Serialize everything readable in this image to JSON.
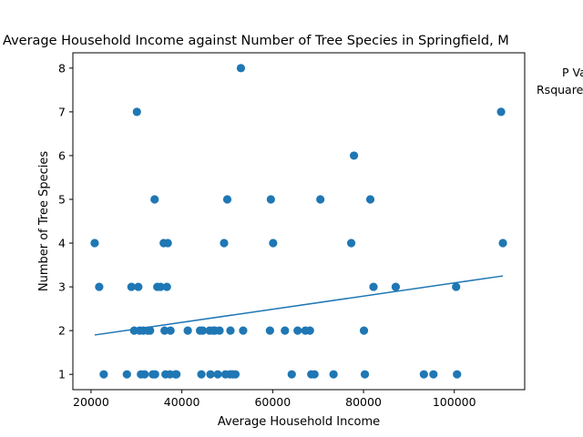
{
  "chart_data": {
    "type": "scatter",
    "title": "Average Household Income against Number of Tree Species in Springfield, M",
    "xlabel": "Average Household Income",
    "ylabel": "Number of Tree Species",
    "xlim": [
      16000,
      115500
    ],
    "ylim": [
      0.65,
      8.35
    ],
    "xticks": [
      20000,
      40000,
      60000,
      80000,
      100000
    ],
    "yticks": [
      1,
      2,
      3,
      4,
      5,
      6,
      7,
      8
    ],
    "grid": false,
    "legend": "none",
    "annotations": [
      "P Va",
      "Rsquare"
    ],
    "colors": {
      "points": "#1f77b4",
      "trendline": "#1f77b4"
    },
    "series": [
      {
        "values": [
          [
            20800,
            4
          ],
          [
            21800,
            3
          ],
          [
            22800,
            1
          ],
          [
            27900,
            1
          ],
          [
            28900,
            3
          ],
          [
            29500,
            2
          ],
          [
            30100,
            7
          ],
          [
            30400,
            3
          ],
          [
            30700,
            2
          ],
          [
            31000,
            1
          ],
          [
            31500,
            2
          ],
          [
            31800,
            1
          ],
          [
            32500,
            2
          ],
          [
            33000,
            2
          ],
          [
            33600,
            1
          ],
          [
            34000,
            5
          ],
          [
            34100,
            1
          ],
          [
            34600,
            3
          ],
          [
            35300,
            3
          ],
          [
            36000,
            4
          ],
          [
            36200,
            2
          ],
          [
            36400,
            1
          ],
          [
            36700,
            3
          ],
          [
            36900,
            4
          ],
          [
            37400,
            1
          ],
          [
            37500,
            2
          ],
          [
            38600,
            1
          ],
          [
            38800,
            1
          ],
          [
            41300,
            2
          ],
          [
            44000,
            2
          ],
          [
            44300,
            1
          ],
          [
            44600,
            2
          ],
          [
            46100,
            2
          ],
          [
            46300,
            1
          ],
          [
            46900,
            2
          ],
          [
            47300,
            2
          ],
          [
            47900,
            1
          ],
          [
            48300,
            2
          ],
          [
            49300,
            4
          ],
          [
            49600,
            1
          ],
          [
            50000,
            5
          ],
          [
            50600,
            1
          ],
          [
            50700,
            2
          ],
          [
            51200,
            1
          ],
          [
            51800,
            1
          ],
          [
            53000,
            8
          ],
          [
            53500,
            2
          ],
          [
            59400,
            2
          ],
          [
            59600,
            5
          ],
          [
            60100,
            4
          ],
          [
            62700,
            2
          ],
          [
            64200,
            1
          ],
          [
            65500,
            2
          ],
          [
            67200,
            2
          ],
          [
            68200,
            2
          ],
          [
            68500,
            1
          ],
          [
            69200,
            1
          ],
          [
            70500,
            5
          ],
          [
            73400,
            1
          ],
          [
            77300,
            4
          ],
          [
            77900,
            6
          ],
          [
            80100,
            2
          ],
          [
            80300,
            1
          ],
          [
            81500,
            5
          ],
          [
            82200,
            3
          ],
          [
            87100,
            3
          ],
          [
            93300,
            1
          ],
          [
            95400,
            1
          ],
          [
            100400,
            3
          ],
          [
            100600,
            1
          ],
          [
            110300,
            7
          ],
          [
            110700,
            4
          ]
        ]
      }
    ],
    "trendline": {
      "x": [
        20800,
        110700
      ],
      "y": [
        1.9,
        3.25
      ]
    }
  }
}
